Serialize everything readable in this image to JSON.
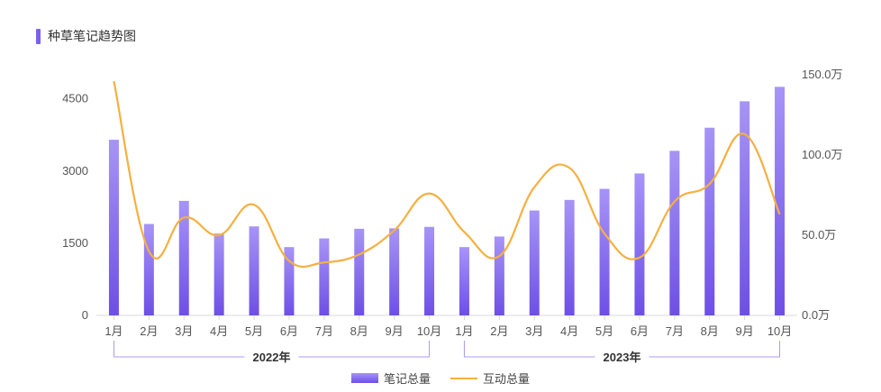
{
  "colors": {
    "bar_top": "#a794f7",
    "bar_bottom": "#6d4fe6",
    "line": "#f5b040",
    "bracket": "#a99cf0",
    "axis": "#d8d8d8",
    "title_mark": "#7b61ee"
  },
  "chart_data": {
    "type": "bar",
    "title": "种草笔记趋势图",
    "categories": [
      "1月",
      "2月",
      "3月",
      "4月",
      "5月",
      "6月",
      "7月",
      "8月",
      "9月",
      "10月",
      "1月",
      "2月",
      "3月",
      "4月",
      "5月",
      "6月",
      "7月",
      "8月",
      "9月",
      "10月"
    ],
    "groups": [
      {
        "label": "2022年",
        "from": 0,
        "to": 9
      },
      {
        "label": "2023年",
        "from": 10,
        "to": 19
      }
    ],
    "y_left": {
      "ticks": [
        "0",
        "1500",
        "3000",
        "4500"
      ],
      "lim": [
        0,
        5000
      ]
    },
    "y_right": {
      "ticks": [
        "0.0万",
        "50.0万",
        "100.0万",
        "150.0万"
      ],
      "lim": [
        0,
        150
      ]
    },
    "series": [
      {
        "name": "笔记总量",
        "type": "bar",
        "axis": "left",
        "values": [
          3650,
          1900,
          2380,
          1700,
          1850,
          1420,
          1600,
          1800,
          1810,
          1840,
          1420,
          1640,
          2180,
          2400,
          2630,
          2950,
          3420,
          3900,
          4450,
          4750
        ]
      },
      {
        "name": "互动总量",
        "type": "line",
        "axis": "right",
        "values": [
          146,
          40,
          61,
          50,
          69,
          34,
          33,
          38,
          53,
          76,
          52,
          37,
          80,
          92,
          51,
          36,
          71,
          82,
          113,
          63
        ]
      }
    ],
    "legend_position": "bottom"
  }
}
